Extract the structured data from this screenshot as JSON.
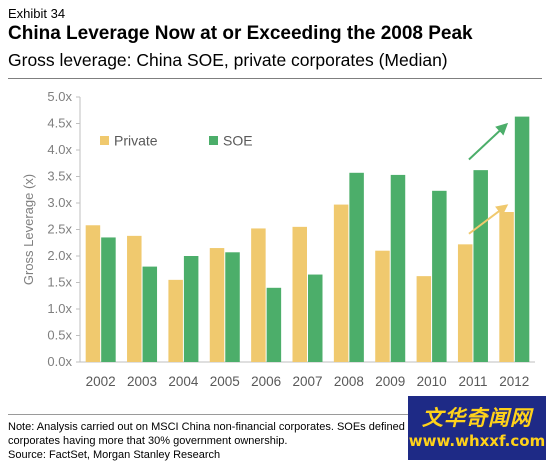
{
  "header": {
    "exhibit": "Exhibit 34",
    "title": "China Leverage Now at or Exceeding the 2008 Peak",
    "subtitle": "Gross leverage: China SOE, private corporates (Median)"
  },
  "chart_data": {
    "type": "bar",
    "categories": [
      "2002",
      "2003",
      "2004",
      "2005",
      "2006",
      "2007",
      "2008",
      "2009",
      "2010",
      "2011",
      "2012"
    ],
    "series": [
      {
        "name": "Private",
        "color": "#f0c96e",
        "values": [
          2.58,
          2.38,
          1.55,
          2.15,
          2.52,
          2.55,
          2.97,
          2.1,
          1.62,
          2.22,
          2.83
        ]
      },
      {
        "name": "SOE",
        "color": "#4cae6a",
        "values": [
          2.35,
          1.8,
          2.0,
          2.07,
          1.4,
          1.65,
          3.57,
          3.53,
          3.23,
          3.62,
          4.63
        ]
      }
    ],
    "ylabel": "Gross Leverage (x)",
    "xlabel": "",
    "ylim": [
      0,
      5
    ],
    "yticks": [
      "0.0x",
      "0.5x",
      "1.0x",
      "1.5x",
      "2.0x",
      "2.5x",
      "3.0x",
      "3.5x",
      "4.0x",
      "4.5x",
      "5.0x"
    ],
    "grid": false,
    "legend_position": "top-left",
    "annotations": [
      {
        "type": "arrow",
        "color": "#f0c96e",
        "from": {
          "x": "2011",
          "y": 2.42
        },
        "to": {
          "x": "2012",
          "y": 2.95
        }
      },
      {
        "type": "arrow",
        "color": "#4cae6a",
        "from": {
          "x": "2011",
          "y": 3.82
        },
        "to": {
          "x": "2012",
          "y": 4.48
        }
      }
    ]
  },
  "footer": {
    "note_line1": "Note: Analysis carried out on MSCI China non-financial corporates. SOEs defined as",
    "note_line2": "corporates having more that 30% government ownership.",
    "source": "Source: FactSet, Morgan Stanley Research"
  },
  "watermark": {
    "line1": "文华奇闻网",
    "line2": "www.whxxf.com"
  }
}
